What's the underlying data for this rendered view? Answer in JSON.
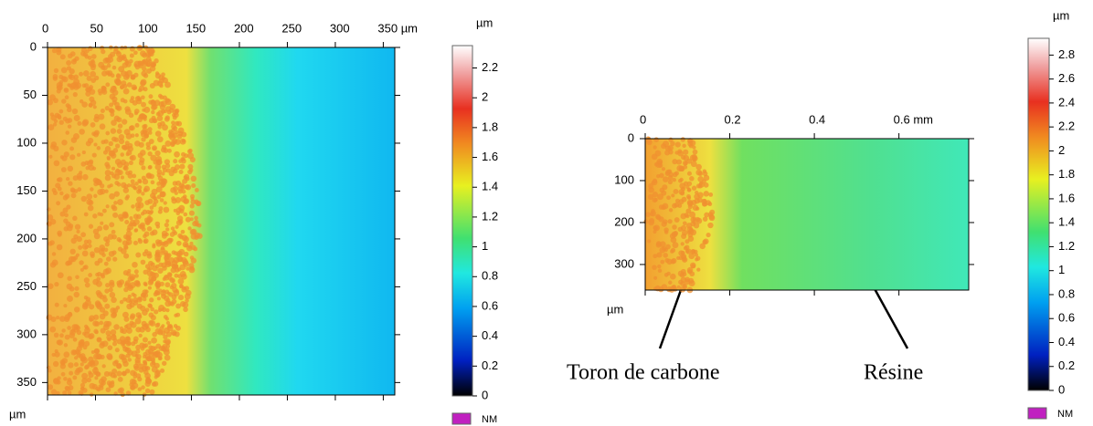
{
  "chart_data": [
    {
      "type": "heatmap",
      "xlim": [
        0,
        362
      ],
      "xticks": [
        0,
        50,
        100,
        150,
        200,
        250,
        300,
        {
          "value": 350,
          "label": "350 µm"
        }
      ],
      "ylim": [
        0,
        363
      ],
      "yticks": [
        0,
        50,
        100,
        150,
        200,
        250,
        300,
        350
      ],
      "y_label": "µm",
      "colorbar": {
        "unit": "µm",
        "lim": [
          0,
          2.35
        ],
        "ticks": [
          0,
          0.2,
          0.4,
          0.6,
          0.8,
          1,
          1.2,
          1.4,
          1.6,
          1.8,
          2,
          2.2
        ],
        "na_label": "NM"
      }
    },
    {
      "type": "heatmap",
      "xlim": [
        0,
        0.765
      ],
      "xticks": [
        0,
        0.2,
        0.4,
        {
          "value": 0.6,
          "label": "0.6 mm"
        }
      ],
      "ylim": [
        0,
        361
      ],
      "yticks": [
        0,
        100,
        200,
        300
      ],
      "y_label": "µm",
      "colorbar": {
        "unit": "µm",
        "lim": [
          0,
          2.94
        ],
        "ticks": [
          0,
          0.2,
          0.4,
          0.6,
          0.8,
          1,
          1.2,
          1.4,
          1.6,
          1.8,
          2,
          2.2,
          2.4,
          2.6,
          2.8
        ],
        "na_label": "NM"
      },
      "annotations": [
        "Toron de carbone",
        "Résine"
      ]
    }
  ]
}
